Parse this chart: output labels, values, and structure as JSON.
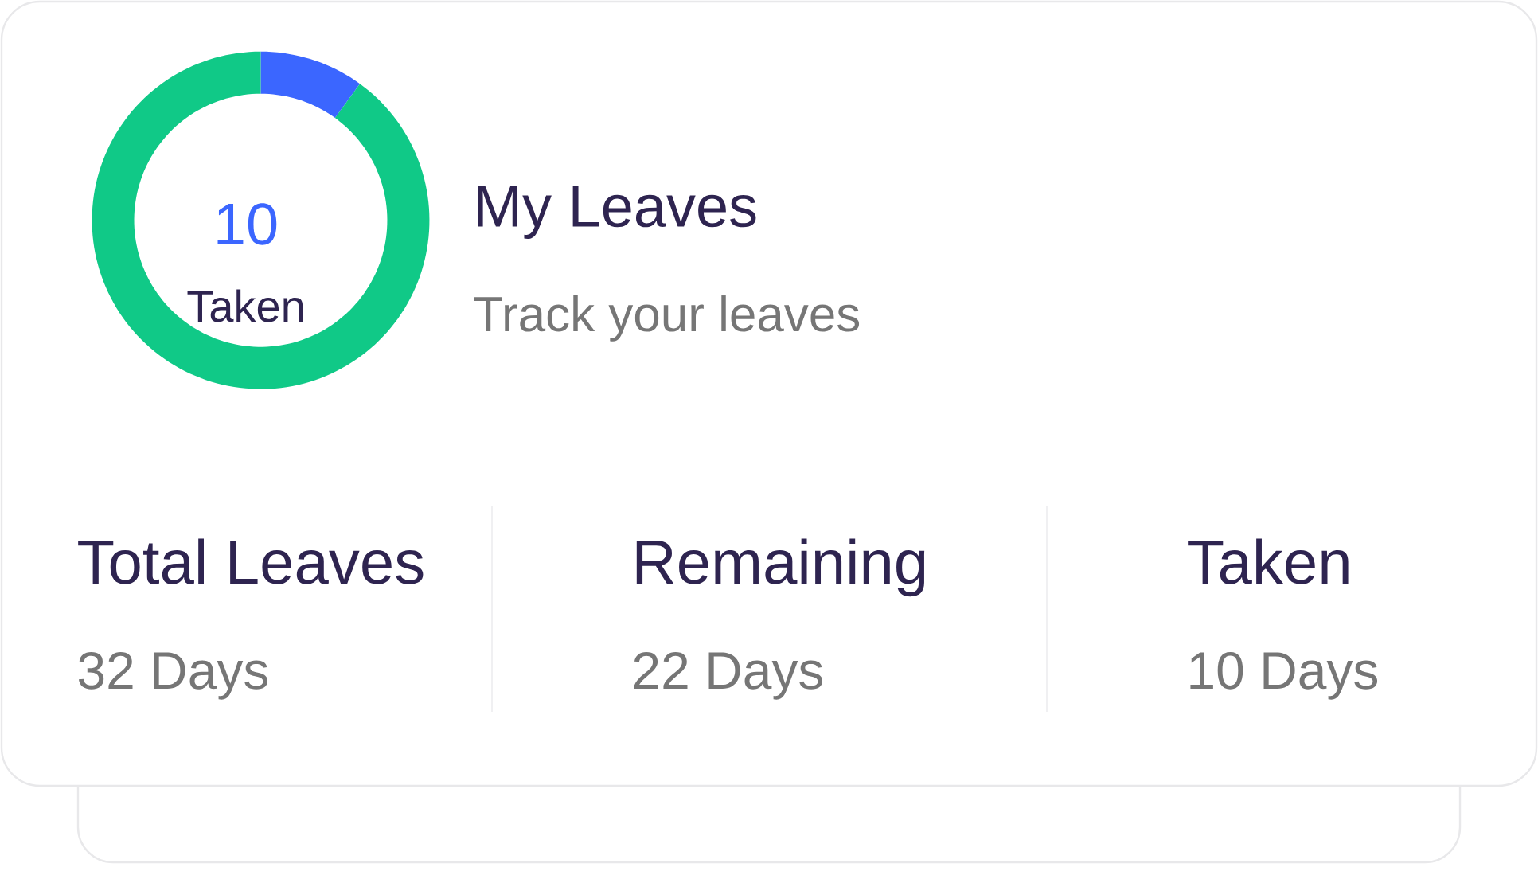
{
  "chart_data": {
    "type": "donut",
    "title": "My Leaves",
    "subtitle": "Track your leaves",
    "categories": [
      null,
      null
    ],
    "values": [
      10,
      90
    ],
    "colors": [
      "#3b66ff",
      "#10c987"
    ],
    "annotations": [
      "10",
      "Taken",
      "Total Leaves",
      "32 Days",
      "Remaining",
      "22 Days",
      "Taken",
      "10 Days"
    ]
  }
}
